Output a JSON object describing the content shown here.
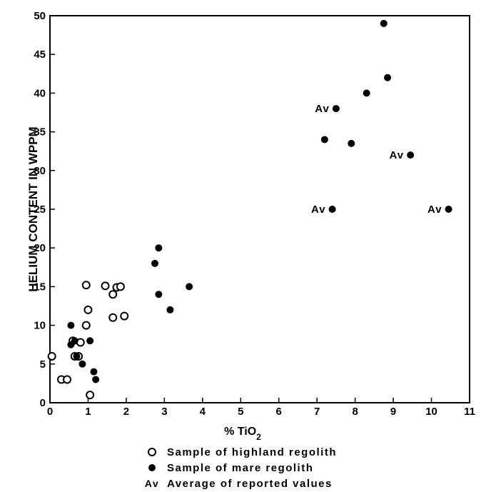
{
  "chart_data": {
    "type": "scatter",
    "xlabel": "% TiO2",
    "ylabel": "HELIUM CONTENT IN WPPM",
    "xlim": [
      0,
      11
    ],
    "ylim": [
      0,
      50
    ],
    "x_ticks": [
      "0",
      "1",
      "2",
      "3",
      "4",
      "5",
      "6",
      "7",
      "8",
      "9",
      "10",
      "11"
    ],
    "y_ticks": [
      "0",
      "5",
      "10",
      "15",
      "20",
      "25",
      "30",
      "35",
      "40",
      "45",
      "50"
    ],
    "grid": false,
    "legend_position": "bottom",
    "series": [
      {
        "name": "Sample of highland regolith",
        "marker": "open-circle",
        "points": [
          {
            "x": 0.05,
            "y": 6
          },
          {
            "x": 0.3,
            "y": 3
          },
          {
            "x": 0.45,
            "y": 3
          },
          {
            "x": 0.6,
            "y": 8
          },
          {
            "x": 0.65,
            "y": 6
          },
          {
            "x": 0.75,
            "y": 6
          },
          {
            "x": 0.8,
            "y": 7.8
          },
          {
            "x": 0.95,
            "y": 15.2
          },
          {
            "x": 0.95,
            "y": 10
          },
          {
            "x": 1.0,
            "y": 12
          },
          {
            "x": 1.05,
            "y": 1
          },
          {
            "x": 1.45,
            "y": 15.1
          },
          {
            "x": 1.65,
            "y": 14
          },
          {
            "x": 1.65,
            "y": 11
          },
          {
            "x": 1.75,
            "y": 14.9
          },
          {
            "x": 1.85,
            "y": 15
          },
          {
            "x": 1.95,
            "y": 11.2
          }
        ]
      },
      {
        "name": "Sample of mare regolith",
        "marker": "filled-circle",
        "points": [
          {
            "x": 0.55,
            "y": 7.5
          },
          {
            "x": 0.55,
            "y": 10
          },
          {
            "x": 0.65,
            "y": 8
          },
          {
            "x": 0.7,
            "y": 6
          },
          {
            "x": 0.85,
            "y": 5
          },
          {
            "x": 1.05,
            "y": 8
          },
          {
            "x": 1.15,
            "y": 4
          },
          {
            "x": 1.2,
            "y": 3
          },
          {
            "x": 2.75,
            "y": 18
          },
          {
            "x": 2.85,
            "y": 20
          },
          {
            "x": 2.85,
            "y": 14
          },
          {
            "x": 3.15,
            "y": 12
          },
          {
            "x": 3.65,
            "y": 15
          },
          {
            "x": 7.2,
            "y": 34
          },
          {
            "x": 7.9,
            "y": 33.5
          },
          {
            "x": 8.3,
            "y": 40
          },
          {
            "x": 8.75,
            "y": 49
          },
          {
            "x": 8.85,
            "y": 42
          }
        ]
      },
      {
        "name": "Average of reported values",
        "marker": "filled-circle",
        "label": "Av",
        "points": [
          {
            "x": 7.5,
            "y": 38
          },
          {
            "x": 7.4,
            "y": 25
          },
          {
            "x": 9.45,
            "y": 32
          },
          {
            "x": 10.45,
            "y": 25
          }
        ]
      }
    ]
  },
  "legend": {
    "items": [
      {
        "symbol": "open-circle",
        "symbol_text": "",
        "text": "Sample of highland regolith"
      },
      {
        "symbol": "filled-circle",
        "symbol_text": "",
        "text": "Sample of mare regolith"
      },
      {
        "symbol": "text",
        "symbol_text": "Av",
        "text": "Average of reported values"
      }
    ]
  }
}
